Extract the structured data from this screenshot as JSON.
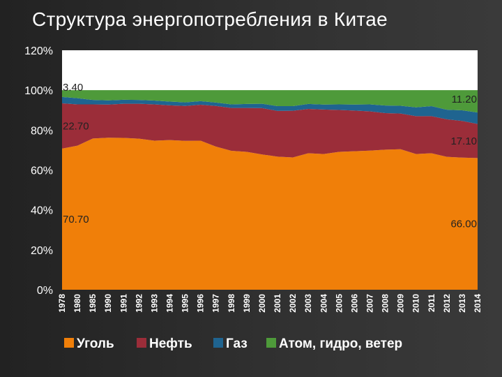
{
  "title": "Структура энергопотребления в Китае",
  "chart_data": {
    "type": "area",
    "stacked": true,
    "percent": true,
    "x": [
      "1978",
      "1980",
      "1985",
      "1990",
      "1991",
      "1992",
      "1993",
      "1994",
      "1995",
      "1996",
      "1997",
      "1998",
      "1999",
      "2000",
      "2001",
      "2002",
      "2003",
      "2004",
      "2005",
      "2006",
      "2007",
      "2008",
      "2009",
      "2010",
      "2011",
      "2012",
      "2013",
      "2014"
    ],
    "y_ticks": [
      "0%",
      "20%",
      "40%",
      "60%",
      "80%",
      "100%",
      "120%"
    ],
    "ylim": [
      0,
      120
    ],
    "series": [
      {
        "name": "Уголь",
        "color": "#f07f09",
        "values": [
          70.7,
          72.2,
          75.8,
          76.2,
          76.1,
          75.7,
          74.7,
          75.0,
          74.6,
          74.7,
          71.7,
          69.6,
          69.1,
          67.8,
          66.7,
          66.3,
          68.4,
          68.0,
          69.1,
          69.4,
          69.7,
          70.2,
          70.4,
          68.0,
          68.4,
          66.6,
          66.2,
          66.0
        ]
      },
      {
        "name": "Нефть",
        "color": "#9b2d39",
        "values": [
          22.7,
          20.7,
          17.1,
          16.6,
          17.1,
          17.5,
          18.2,
          17.4,
          17.5,
          18.0,
          20.4,
          21.5,
          22.0,
          23.2,
          22.9,
          23.4,
          22.2,
          22.3,
          21.0,
          20.4,
          19.7,
          18.3,
          17.9,
          19.0,
          18.6,
          18.8,
          18.4,
          17.1
        ]
      },
      {
        "name": "Газ",
        "color": "#1f6490",
        "values": [
          3.2,
          3.1,
          2.2,
          2.1,
          2.0,
          1.9,
          1.9,
          1.9,
          1.8,
          1.8,
          1.7,
          1.8,
          2.0,
          2.2,
          2.4,
          2.3,
          2.5,
          2.5,
          2.8,
          3.0,
          3.5,
          3.8,
          3.9,
          4.4,
          5.0,
          4.8,
          5.3,
          5.7
        ]
      },
      {
        "name": "Атом, гидро, ветер",
        "color": "#4e9a3a",
        "values": [
          3.4,
          4.0,
          4.9,
          5.1,
          4.8,
          4.9,
          5.2,
          5.7,
          6.1,
          5.5,
          6.2,
          7.1,
          6.9,
          6.8,
          8.0,
          8.0,
          6.9,
          7.2,
          7.1,
          7.2,
          7.1,
          7.7,
          7.8,
          8.6,
          8.0,
          9.8,
          10.1,
          11.2
        ]
      }
    ],
    "data_labels": {
      "start": [
        "70.70",
        "22.70",
        "3.40"
      ],
      "end": [
        "66.00",
        "17.10",
        "11.20"
      ]
    },
    "legend_position": "bottom",
    "grid": false
  }
}
